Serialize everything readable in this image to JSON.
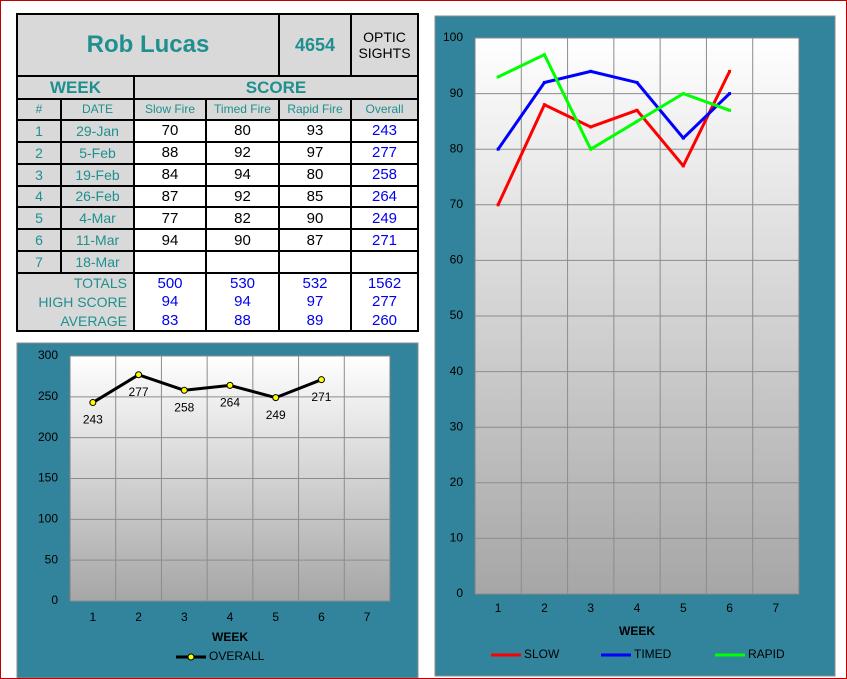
{
  "header": {
    "name": "Rob Lucas",
    "id": "4654",
    "course": "OPTIC SIGHTS"
  },
  "table": {
    "group_headers": [
      "WEEK",
      "SCORE"
    ],
    "columns": [
      "#",
      "DATE",
      "Slow Fire",
      "Timed Fire",
      "Rapid Fire",
      "Overall"
    ],
    "rows": [
      [
        1,
        "29-Jan",
        70,
        80,
        93,
        243
      ],
      [
        2,
        "5-Feb",
        88,
        92,
        97,
        277
      ],
      [
        3,
        "19-Feb",
        84,
        94,
        80,
        258
      ],
      [
        4,
        "26-Feb",
        87,
        92,
        85,
        264
      ],
      [
        5,
        "4-Mar",
        77,
        82,
        90,
        249
      ],
      [
        6,
        "11-Mar",
        94,
        90,
        87,
        271
      ],
      [
        7,
        "18-Mar",
        null,
        null,
        null,
        null
      ]
    ],
    "summary": [
      {
        "label": "TOTALS",
        "values": [
          500,
          530,
          532,
          1562
        ]
      },
      {
        "label": "HIGH SCORE",
        "values": [
          94,
          94,
          97,
          277
        ]
      },
      {
        "label": "AVERAGE",
        "values": [
          83,
          88,
          89,
          260
        ]
      }
    ]
  },
  "chart_data": [
    {
      "type": "line",
      "x_label": "WEEK",
      "categories": [
        1,
        2,
        3,
        4,
        5,
        6,
        7
      ],
      "series": [
        {
          "name": "OVERALL",
          "color": "#000000",
          "marker_color": "#ffff00",
          "values": [
            243,
            277,
            258,
            264,
            249,
            271,
            null
          ]
        }
      ],
      "ylim": [
        0,
        300
      ],
      "yticks": [
        0,
        50,
        100,
        150,
        200,
        250,
        300
      ],
      "grid": true,
      "data_labels": true,
      "legend": "bottom"
    },
    {
      "type": "line",
      "x_label": "WEEK",
      "categories": [
        1,
        2,
        3,
        4,
        5,
        6,
        7
      ],
      "series": [
        {
          "name": "SLOW",
          "color": "#ff0000",
          "values": [
            70,
            88,
            84,
            87,
            77,
            94,
            null
          ]
        },
        {
          "name": "TIMED",
          "color": "#0000ff",
          "values": [
            80,
            92,
            94,
            92,
            82,
            90,
            null
          ]
        },
        {
          "name": "RAPID",
          "color": "#00ff00",
          "values": [
            93,
            97,
            80,
            85,
            90,
            87,
            null
          ]
        }
      ],
      "ylim": [
        0,
        100
      ],
      "yticks": [
        0,
        10,
        20,
        30,
        40,
        50,
        60,
        70,
        80,
        90,
        100
      ],
      "grid": true,
      "data_labels": false,
      "legend": "bottom"
    }
  ]
}
